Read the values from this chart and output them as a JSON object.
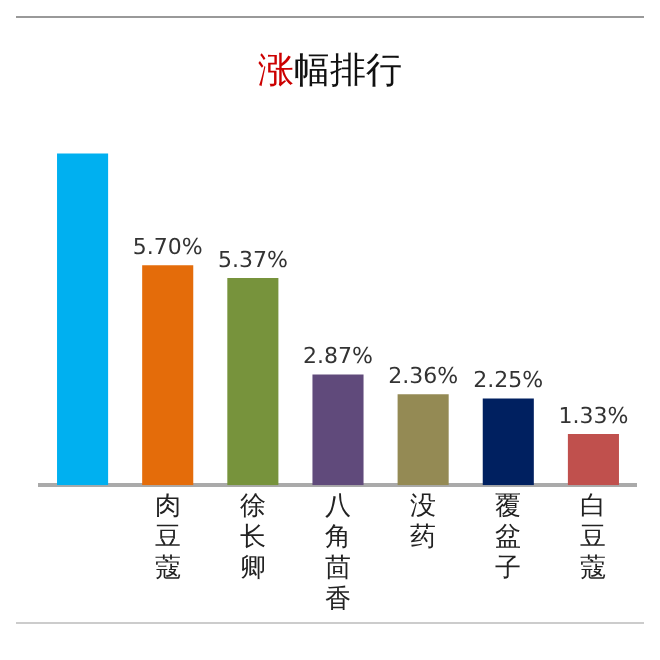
{
  "chart_data": {
    "type": "bar",
    "title": "涨幅排行",
    "categories": [
      null,
      "肉豆蔻",
      "徐长卿",
      "八角茴香",
      "没药",
      "覆盆子",
      "白豆蔻"
    ],
    "values": [
      8.6,
      5.7,
      5.37,
      2.87,
      2.36,
      2.25,
      1.33
    ],
    "value_labels": [
      null,
      "5.70%",
      "5.37%",
      "2.87%",
      "2.36%",
      "2.25%",
      "1.33%"
    ],
    "colors": [
      "#00b0f0",
      "#e46c0a",
      "#77933c",
      "#604a7b",
      "#948a54",
      "#002060",
      "#c0504d"
    ],
    "tick_labels": "x",
    "grid": false,
    "legend": false
  }
}
